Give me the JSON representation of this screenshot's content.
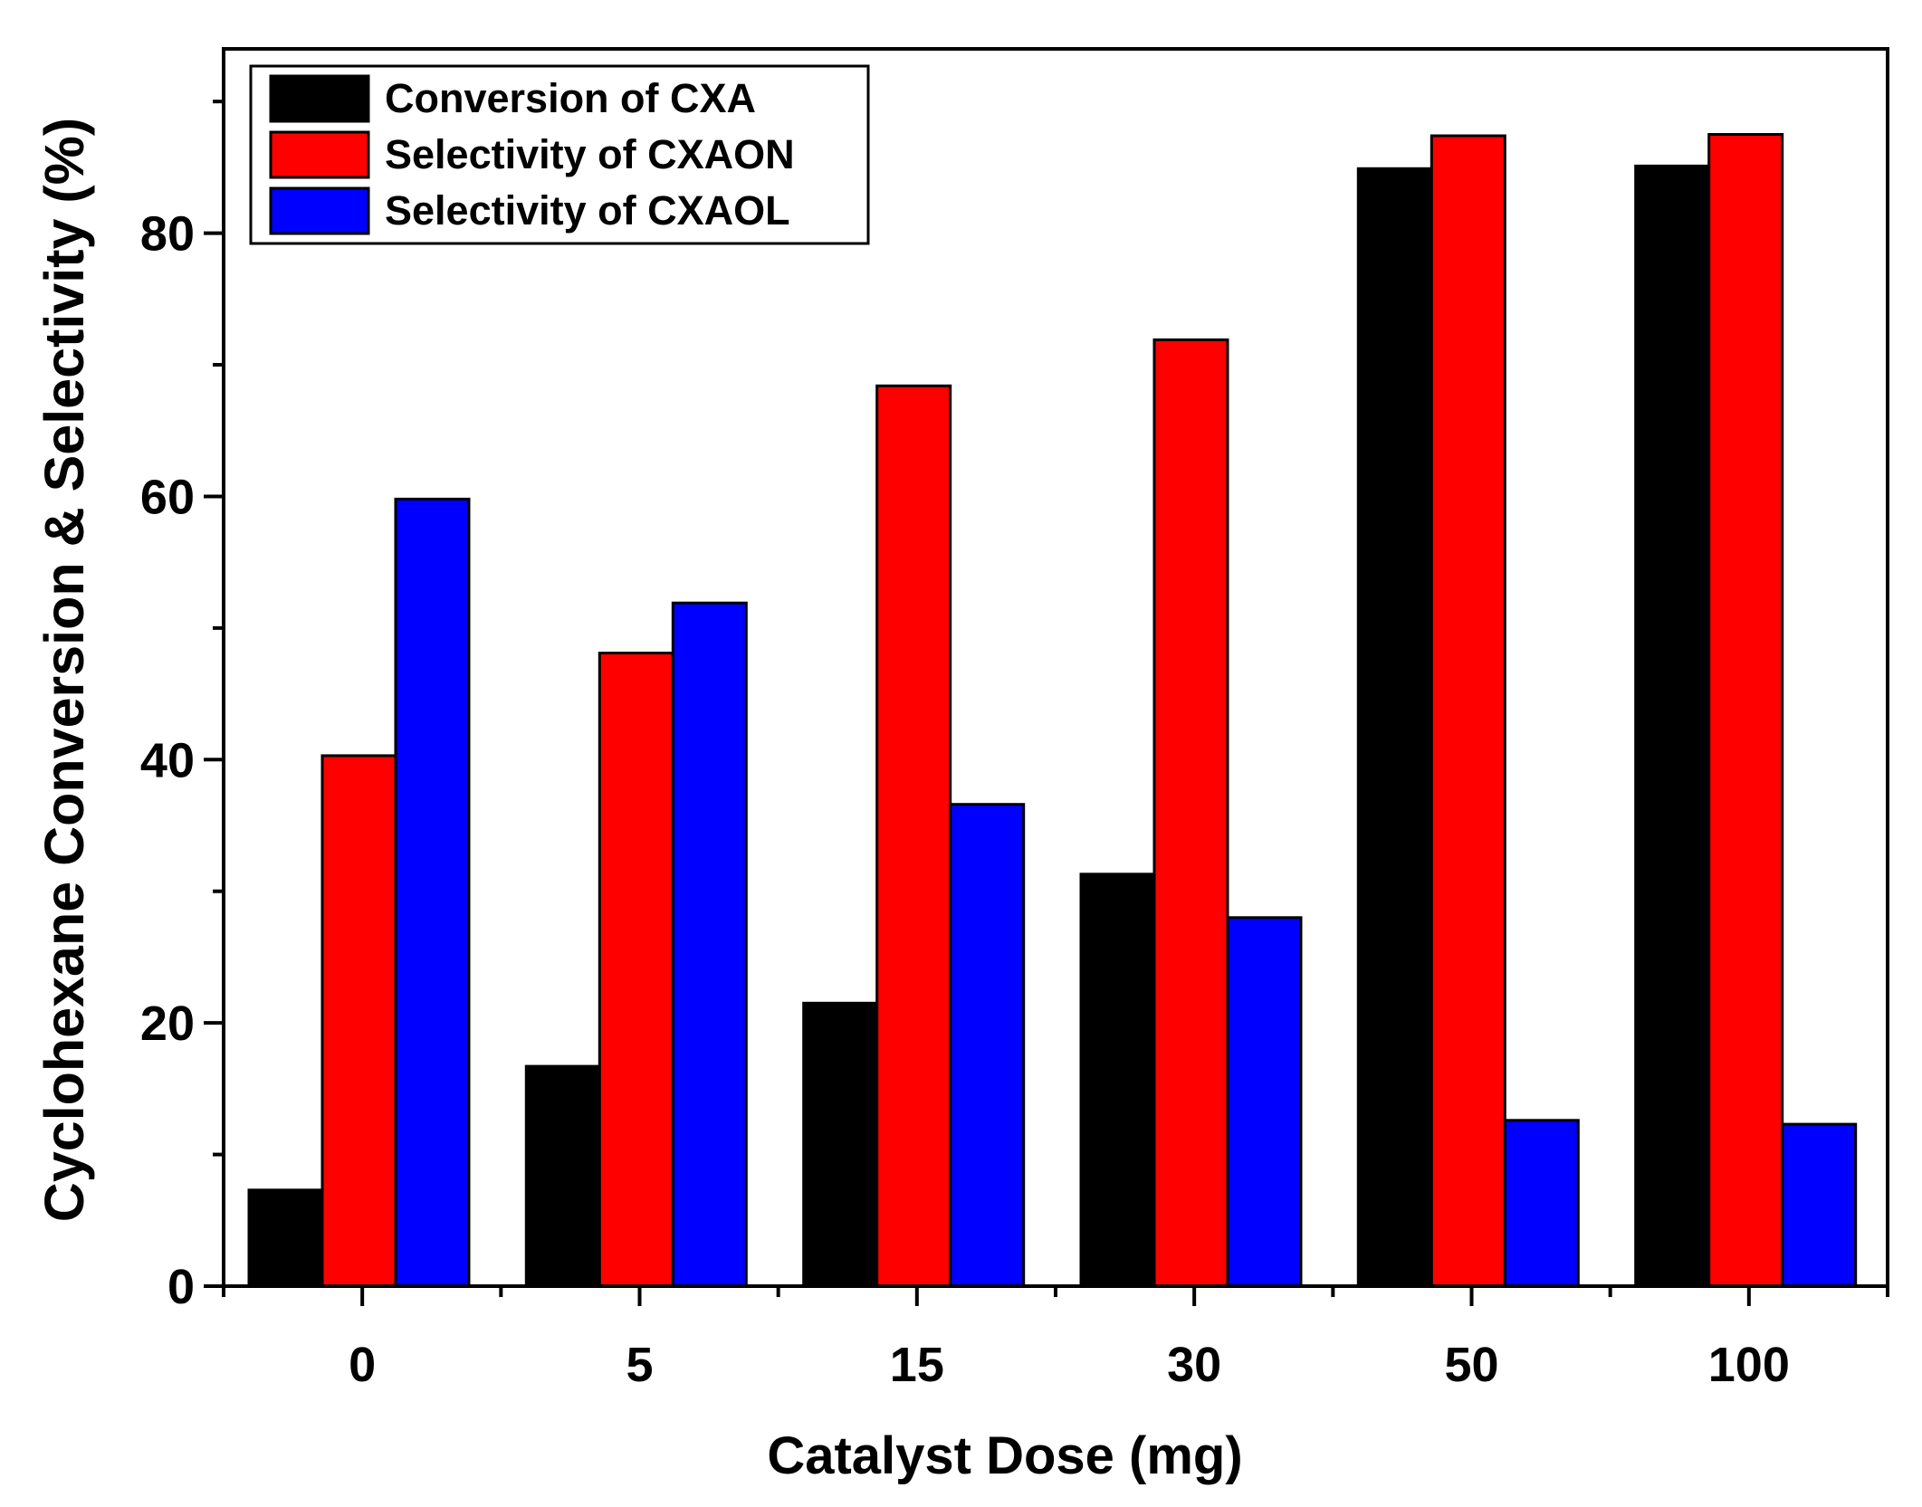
{
  "chart_data": {
    "type": "bar",
    "title": "",
    "xlabel": "Catalyst Dose (mg)",
    "ylabel": "Cyclohexane Conversion & Selectivity (%)",
    "categories": [
      "0",
      "5",
      "15",
      "30",
      "50",
      "100"
    ],
    "ylim": [
      0,
      94
    ],
    "yticks": [
      0,
      20,
      40,
      60,
      80
    ],
    "yticks_minor": [
      10,
      30,
      50,
      70,
      90
    ],
    "grid": false,
    "legend_position": "top-left",
    "series": [
      {
        "name": "Conversion of CXA",
        "color": "#000000",
        "values": [
          7.3,
          16.7,
          21.5,
          31.3,
          84.9,
          85.1
        ]
      },
      {
        "name": "Selectivity of CXAON",
        "color": "#ff0000",
        "values": [
          40.3,
          48.1,
          68.4,
          71.9,
          87.4,
          87.5
        ]
      },
      {
        "name": "Selectivity of CXAOL",
        "color": "#0000ff",
        "values": [
          59.8,
          51.9,
          36.6,
          28.0,
          12.6,
          12.3
        ]
      }
    ]
  }
}
